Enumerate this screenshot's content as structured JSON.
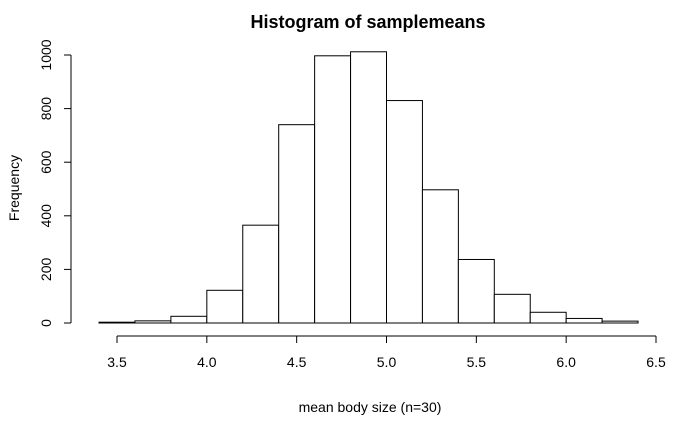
{
  "chart_data": {
    "type": "bar",
    "title": "Histogram of samplemeans",
    "xlabel": "mean body size (n=30)",
    "ylabel": "Frequency",
    "bin_edges": [
      3.4,
      3.6,
      3.8,
      4.0,
      4.2,
      4.4,
      4.6,
      4.8,
      5.0,
      5.2,
      5.4,
      5.6,
      5.8,
      6.0,
      6.2,
      6.4
    ],
    "values": [
      3,
      8,
      25,
      122,
      365,
      740,
      997,
      1012,
      830,
      497,
      237,
      107,
      40,
      17,
      7
    ],
    "xlim": [
      3.4,
      6.5
    ],
    "ylim": [
      0,
      1010
    ],
    "x_ticks": [
      3.5,
      4.0,
      4.5,
      5.0,
      5.5,
      6.0,
      6.5
    ],
    "x_tick_labels": [
      "3.5",
      "4.0",
      "4.5",
      "5.0",
      "5.5",
      "6.0",
      "6.5"
    ],
    "y_ticks": [
      0,
      200,
      400,
      600,
      800,
      1000
    ],
    "y_tick_labels": [
      "0",
      "200",
      "400",
      "600",
      "800",
      "1000"
    ],
    "grid": false,
    "bar_fill": "#ffffff",
    "bar_stroke": "#000000"
  }
}
